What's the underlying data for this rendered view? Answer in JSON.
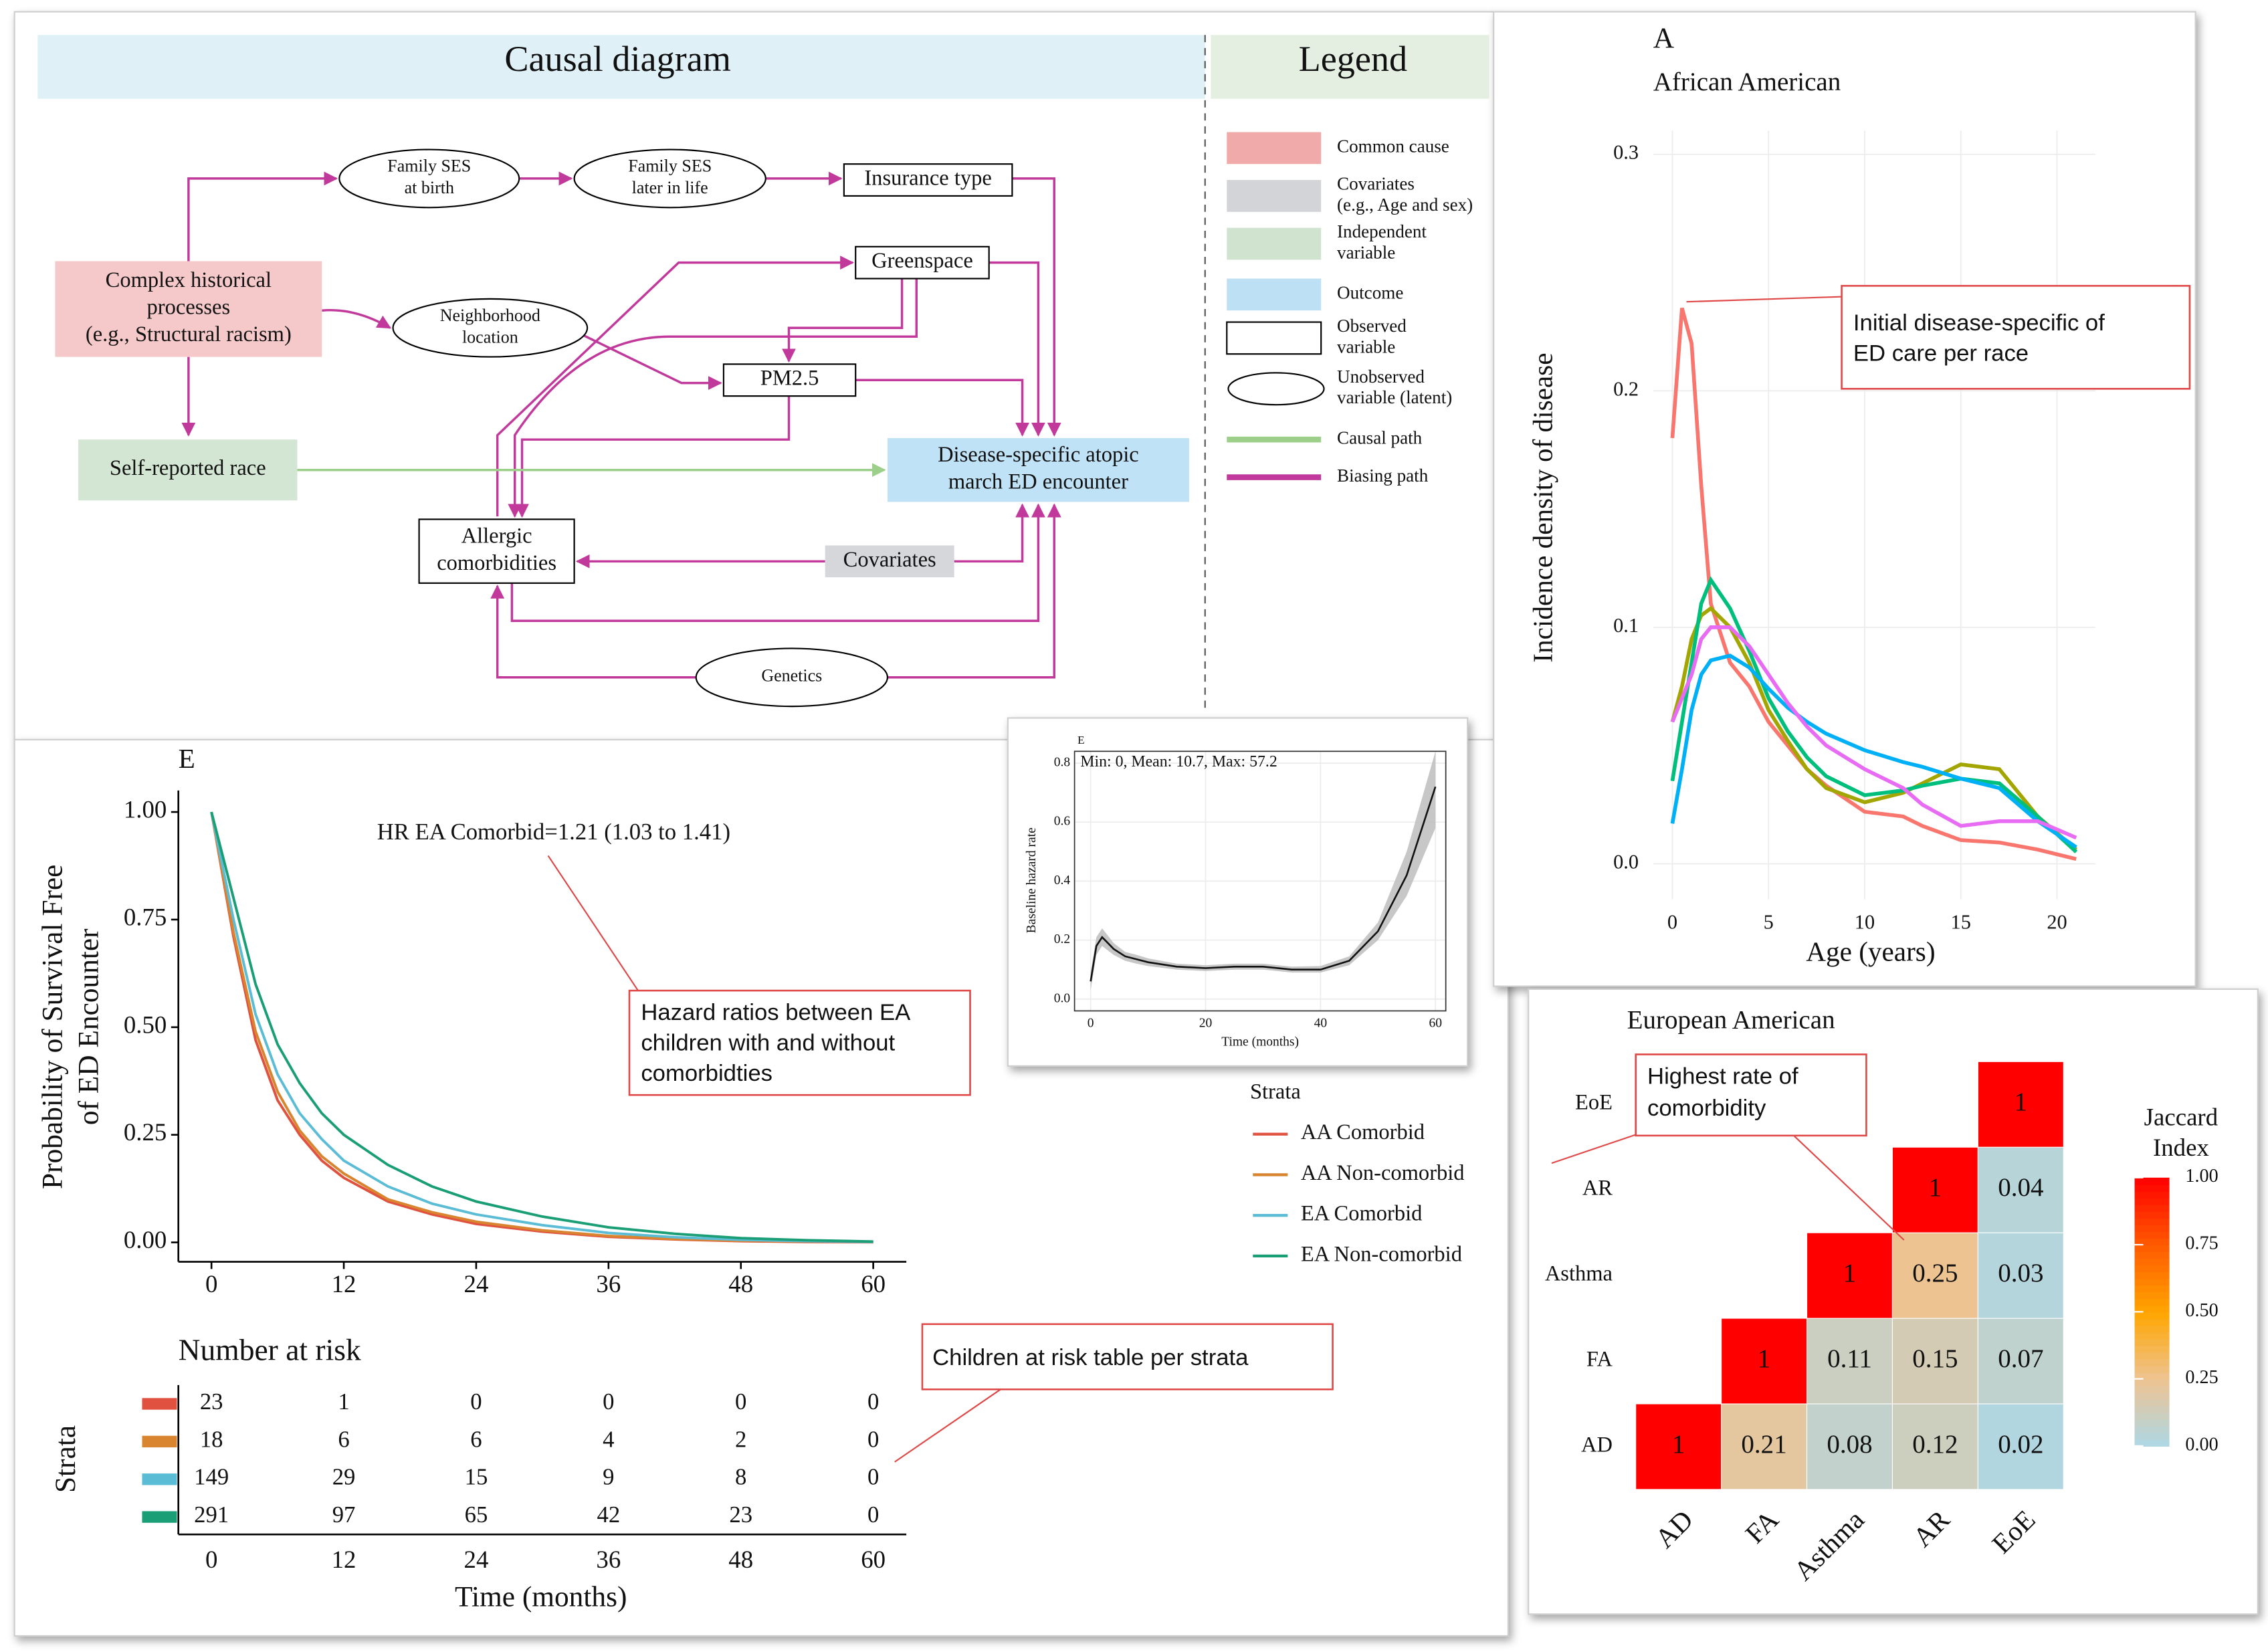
{
  "diagram": {
    "title": "Causal diagram",
    "nodes": [
      {
        "label": [
          "Complex historical",
          "processes",
          "(e.g., Structural racism)"
        ]
      },
      {
        "label": [
          "Family SES",
          "at birth"
        ]
      },
      {
        "label": [
          "Family SES",
          "later in life"
        ]
      },
      {
        "label": [
          "Insurance type"
        ]
      },
      {
        "label": [
          "Greenspace"
        ]
      },
      {
        "label": [
          "Neighborhood",
          "location"
        ]
      },
      {
        "label": [
          "PM2.5"
        ]
      },
      {
        "label": [
          "Self-reported race"
        ]
      },
      {
        "label": [
          "Disease-specific atopic",
          "march ED encounter"
        ]
      },
      {
        "label": [
          "Allergic",
          "comorbidities"
        ]
      },
      {
        "label": [
          "Covariates"
        ]
      },
      {
        "label": [
          "Genetics"
        ]
      }
    ],
    "legend": {
      "title": "Legend",
      "items": [
        {
          "label": [
            "Common cause"
          ],
          "color": "#f0aaaa",
          "swatch": "box"
        },
        {
          "label": [
            "Covariates",
            "(e.g., Age and sex)"
          ],
          "color": "#d3d4d8",
          "swatch": "box"
        },
        {
          "label": [
            "Independent",
            "variable"
          ],
          "color": "#cfe3cf",
          "swatch": "box"
        },
        {
          "label": [
            "Outcome"
          ],
          "color": "#bde0f5",
          "swatch": "box"
        },
        {
          "label": [
            "Observed",
            "variable"
          ],
          "color": "#ffffff",
          "swatch": "outline"
        },
        {
          "label": [
            "Unobserved",
            "variable (latent)"
          ],
          "color": "#ffffff",
          "swatch": "ellipse"
        },
        {
          "label": [
            "Causal path"
          ],
          "color": "#9ccf8a",
          "swatch": "line"
        },
        {
          "label": [
            "Biasing path"
          ],
          "color": "#c2399c",
          "swatch": "line"
        }
      ]
    }
  },
  "chart_data": [
    {
      "type": "line",
      "title": "A",
      "subtitle": "African American",
      "ylabel": "Incidence density of disease",
      "xlabel": "Age (years)",
      "x": [
        0,
        0.5,
        1,
        1.5,
        2,
        3,
        4,
        5,
        6,
        7,
        8,
        10,
        12,
        13,
        15,
        17,
        19,
        21
      ],
      "series": [
        {
          "color": "#f8766d",
          "values": [
            0.18,
            0.235,
            0.22,
            0.16,
            0.11,
            0.085,
            0.075,
            0.06,
            0.05,
            0.04,
            0.033,
            0.022,
            0.02,
            0.016,
            0.01,
            0.009,
            0.006,
            0.002
          ]
        },
        {
          "color": "#a3a500",
          "values": [
            0.06,
            0.075,
            0.095,
            0.105,
            0.108,
            0.1,
            0.085,
            0.065,
            0.052,
            0.04,
            0.032,
            0.026,
            0.03,
            0.034,
            0.042,
            0.04,
            0.02,
            0.006
          ]
        },
        {
          "color": "#00bf7d",
          "values": [
            0.035,
            0.06,
            0.085,
            0.11,
            0.12,
            0.108,
            0.09,
            0.07,
            0.056,
            0.045,
            0.037,
            0.029,
            0.031,
            0.033,
            0.036,
            0.034,
            0.02,
            0.005
          ]
        },
        {
          "color": "#00b0f6",
          "values": [
            0.017,
            0.04,
            0.065,
            0.08,
            0.086,
            0.088,
            0.083,
            0.074,
            0.066,
            0.06,
            0.055,
            0.048,
            0.043,
            0.041,
            0.036,
            0.032,
            0.018,
            0.007
          ]
        },
        {
          "color": "#e76bf3",
          "values": [
            0.06,
            0.07,
            0.08,
            0.095,
            0.1,
            0.1,
            0.092,
            0.08,
            0.068,
            0.058,
            0.05,
            0.04,
            0.032,
            0.025,
            0.016,
            0.018,
            0.018,
            0.011
          ]
        }
      ],
      "xlim": [
        -1,
        22
      ],
      "ylim": [
        -0.015,
        0.31
      ],
      "xticks": [
        0,
        5,
        10,
        15,
        20
      ],
      "yticks": [
        {
          "value": 0,
          "label": "0.0"
        },
        0.1,
        0.2,
        0.3
      ],
      "grid": true,
      "annotation": [
        "Initial disease-specific of",
        "ED care per race"
      ]
    },
    {
      "type": "line",
      "title": "E",
      "ylabel": [
        "Probability of Survival Free",
        "of ED Encounter"
      ],
      "x": [
        0,
        2,
        4,
        6,
        8,
        10,
        12,
        16,
        20,
        24,
        30,
        36,
        42,
        48,
        54,
        60
      ],
      "series": [
        {
          "name": "AA Comorbid",
          "color": "#e0523f",
          "values": [
            1,
            0.71,
            0.47,
            0.33,
            0.25,
            0.19,
            0.15,
            0.095,
            0.065,
            0.043,
            0.025,
            0.013,
            0.007,
            0.003,
            0.001,
            0.0005
          ]
        },
        {
          "name": "AA Non-comorbid",
          "color": "#d98530",
          "values": [
            1,
            0.72,
            0.49,
            0.35,
            0.26,
            0.2,
            0.16,
            0.1,
            0.07,
            0.048,
            0.028,
            0.015,
            0.008,
            0.004,
            0.002,
            0.001
          ]
        },
        {
          "name": "EA Comorbid",
          "color": "#5bbcd6",
          "values": [
            1,
            0.75,
            0.53,
            0.39,
            0.3,
            0.24,
            0.19,
            0.13,
            0.09,
            0.065,
            0.04,
            0.022,
            0.012,
            0.006,
            0.003,
            0.001
          ]
        },
        {
          "name": "EA Non-comorbid",
          "color": "#1a9e76",
          "values": [
            1,
            0.8,
            0.6,
            0.46,
            0.37,
            0.3,
            0.25,
            0.18,
            0.13,
            0.095,
            0.06,
            0.035,
            0.02,
            0.01,
            0.005,
            0.002
          ]
        }
      ],
      "legend_title": "Strata",
      "xlim": [
        -3,
        63
      ],
      "ylim": [
        -0.045,
        1.05
      ],
      "xticks": [
        0,
        12,
        24,
        36,
        48,
        60
      ],
      "yticks": [
        {
          "value": 0,
          "label": "0.00"
        },
        {
          "value": 0.25,
          "label": "0.25"
        },
        {
          "value": 0.5,
          "label": "0.50"
        },
        {
          "value": 0.75,
          "label": "0.75"
        },
        {
          "value": 1,
          "label": "1.00"
        }
      ],
      "annotation": "HR EA Comorbid=1.21 (1.03 to 1.41)",
      "callout": [
        "Hazard ratios between EA",
        "children with and without",
        "comorbidties"
      ]
    },
    {
      "type": "line",
      "title": "E",
      "ylabel": "Baseline hazard rate",
      "xlabel": "Time (months)",
      "annotation": "Min: 0, Mean: 10.7, Max: 57.2",
      "x": [
        0,
        1,
        2,
        4,
        6,
        8,
        10,
        15,
        20,
        25,
        30,
        35,
        40,
        45,
        50,
        55,
        60
      ],
      "series": [
        {
          "color": "#111111",
          "values": [
            0.06,
            0.18,
            0.21,
            0.17,
            0.145,
            0.135,
            0.125,
            0.11,
            0.105,
            0.11,
            0.11,
            0.1,
            0.1,
            0.13,
            0.23,
            0.42,
            0.72
          ],
          "lower": [
            0.03,
            0.15,
            0.18,
            0.15,
            0.13,
            0.12,
            0.112,
            0.1,
            0.095,
            0.1,
            0.1,
            0.09,
            0.09,
            0.115,
            0.2,
            0.35,
            0.58
          ],
          "upper": [
            0.09,
            0.21,
            0.24,
            0.19,
            0.16,
            0.15,
            0.138,
            0.12,
            0.115,
            0.12,
            0.12,
            0.11,
            0.112,
            0.145,
            0.26,
            0.5,
            0.84
          ]
        }
      ],
      "xlim": [
        -2.8,
        61.8
      ],
      "ylim": [
        -0.04,
        0.84
      ],
      "xticks": [
        0,
        20,
        40,
        60
      ],
      "yticks": [
        {
          "value": 0,
          "label": "0.0"
        },
        0.2,
        0.4,
        0.6,
        0.8
      ],
      "grid": true
    },
    {
      "type": "heatmap",
      "title": "European American",
      "categories": [
        "AD",
        "FA",
        "Asthma",
        "AR",
        "EoE"
      ],
      "values": [
        [
          1,
          0.21,
          0.08,
          0.12,
          0.02
        ],
        [
          null,
          1,
          0.11,
          0.15,
          0.07
        ],
        [
          null,
          null,
          1,
          0.25,
          0.03
        ],
        [
          null,
          null,
          null,
          1,
          0.04
        ],
        [
          null,
          null,
          null,
          null,
          1
        ]
      ],
      "legend_title": [
        "Jaccard",
        "Index"
      ],
      "colors": [
        "#add8e6",
        "#eec392",
        "#ffa500",
        "#ff5a00",
        "#ff0000"
      ],
      "clim": [
        0,
        1
      ],
      "cticks": [
        {
          "value": 0,
          "label": "0.00"
        },
        {
          "value": 0.25,
          "label": "0.25"
        },
        {
          "value": 0.5,
          "label": "0.50"
        },
        {
          "value": 0.75,
          "label": "0.75"
        },
        {
          "value": 1,
          "label": "1.00"
        }
      ],
      "annotation": [
        "Highest rate of",
        "comorbidity"
      ]
    }
  ],
  "risk_table": {
    "title": "Number at risk",
    "ylabel": "Strata",
    "xlabel": "Time (months)",
    "times": [
      0,
      12,
      24,
      36,
      48,
      60
    ],
    "rows": [
      [
        23,
        1,
        0,
        0,
        0,
        0
      ],
      [
        18,
        6,
        6,
        4,
        2,
        0
      ],
      [
        149,
        29,
        15,
        9,
        8,
        0
      ],
      [
        291,
        97,
        65,
        42,
        23,
        0
      ]
    ],
    "callout": "Children at risk table per strata"
  }
}
